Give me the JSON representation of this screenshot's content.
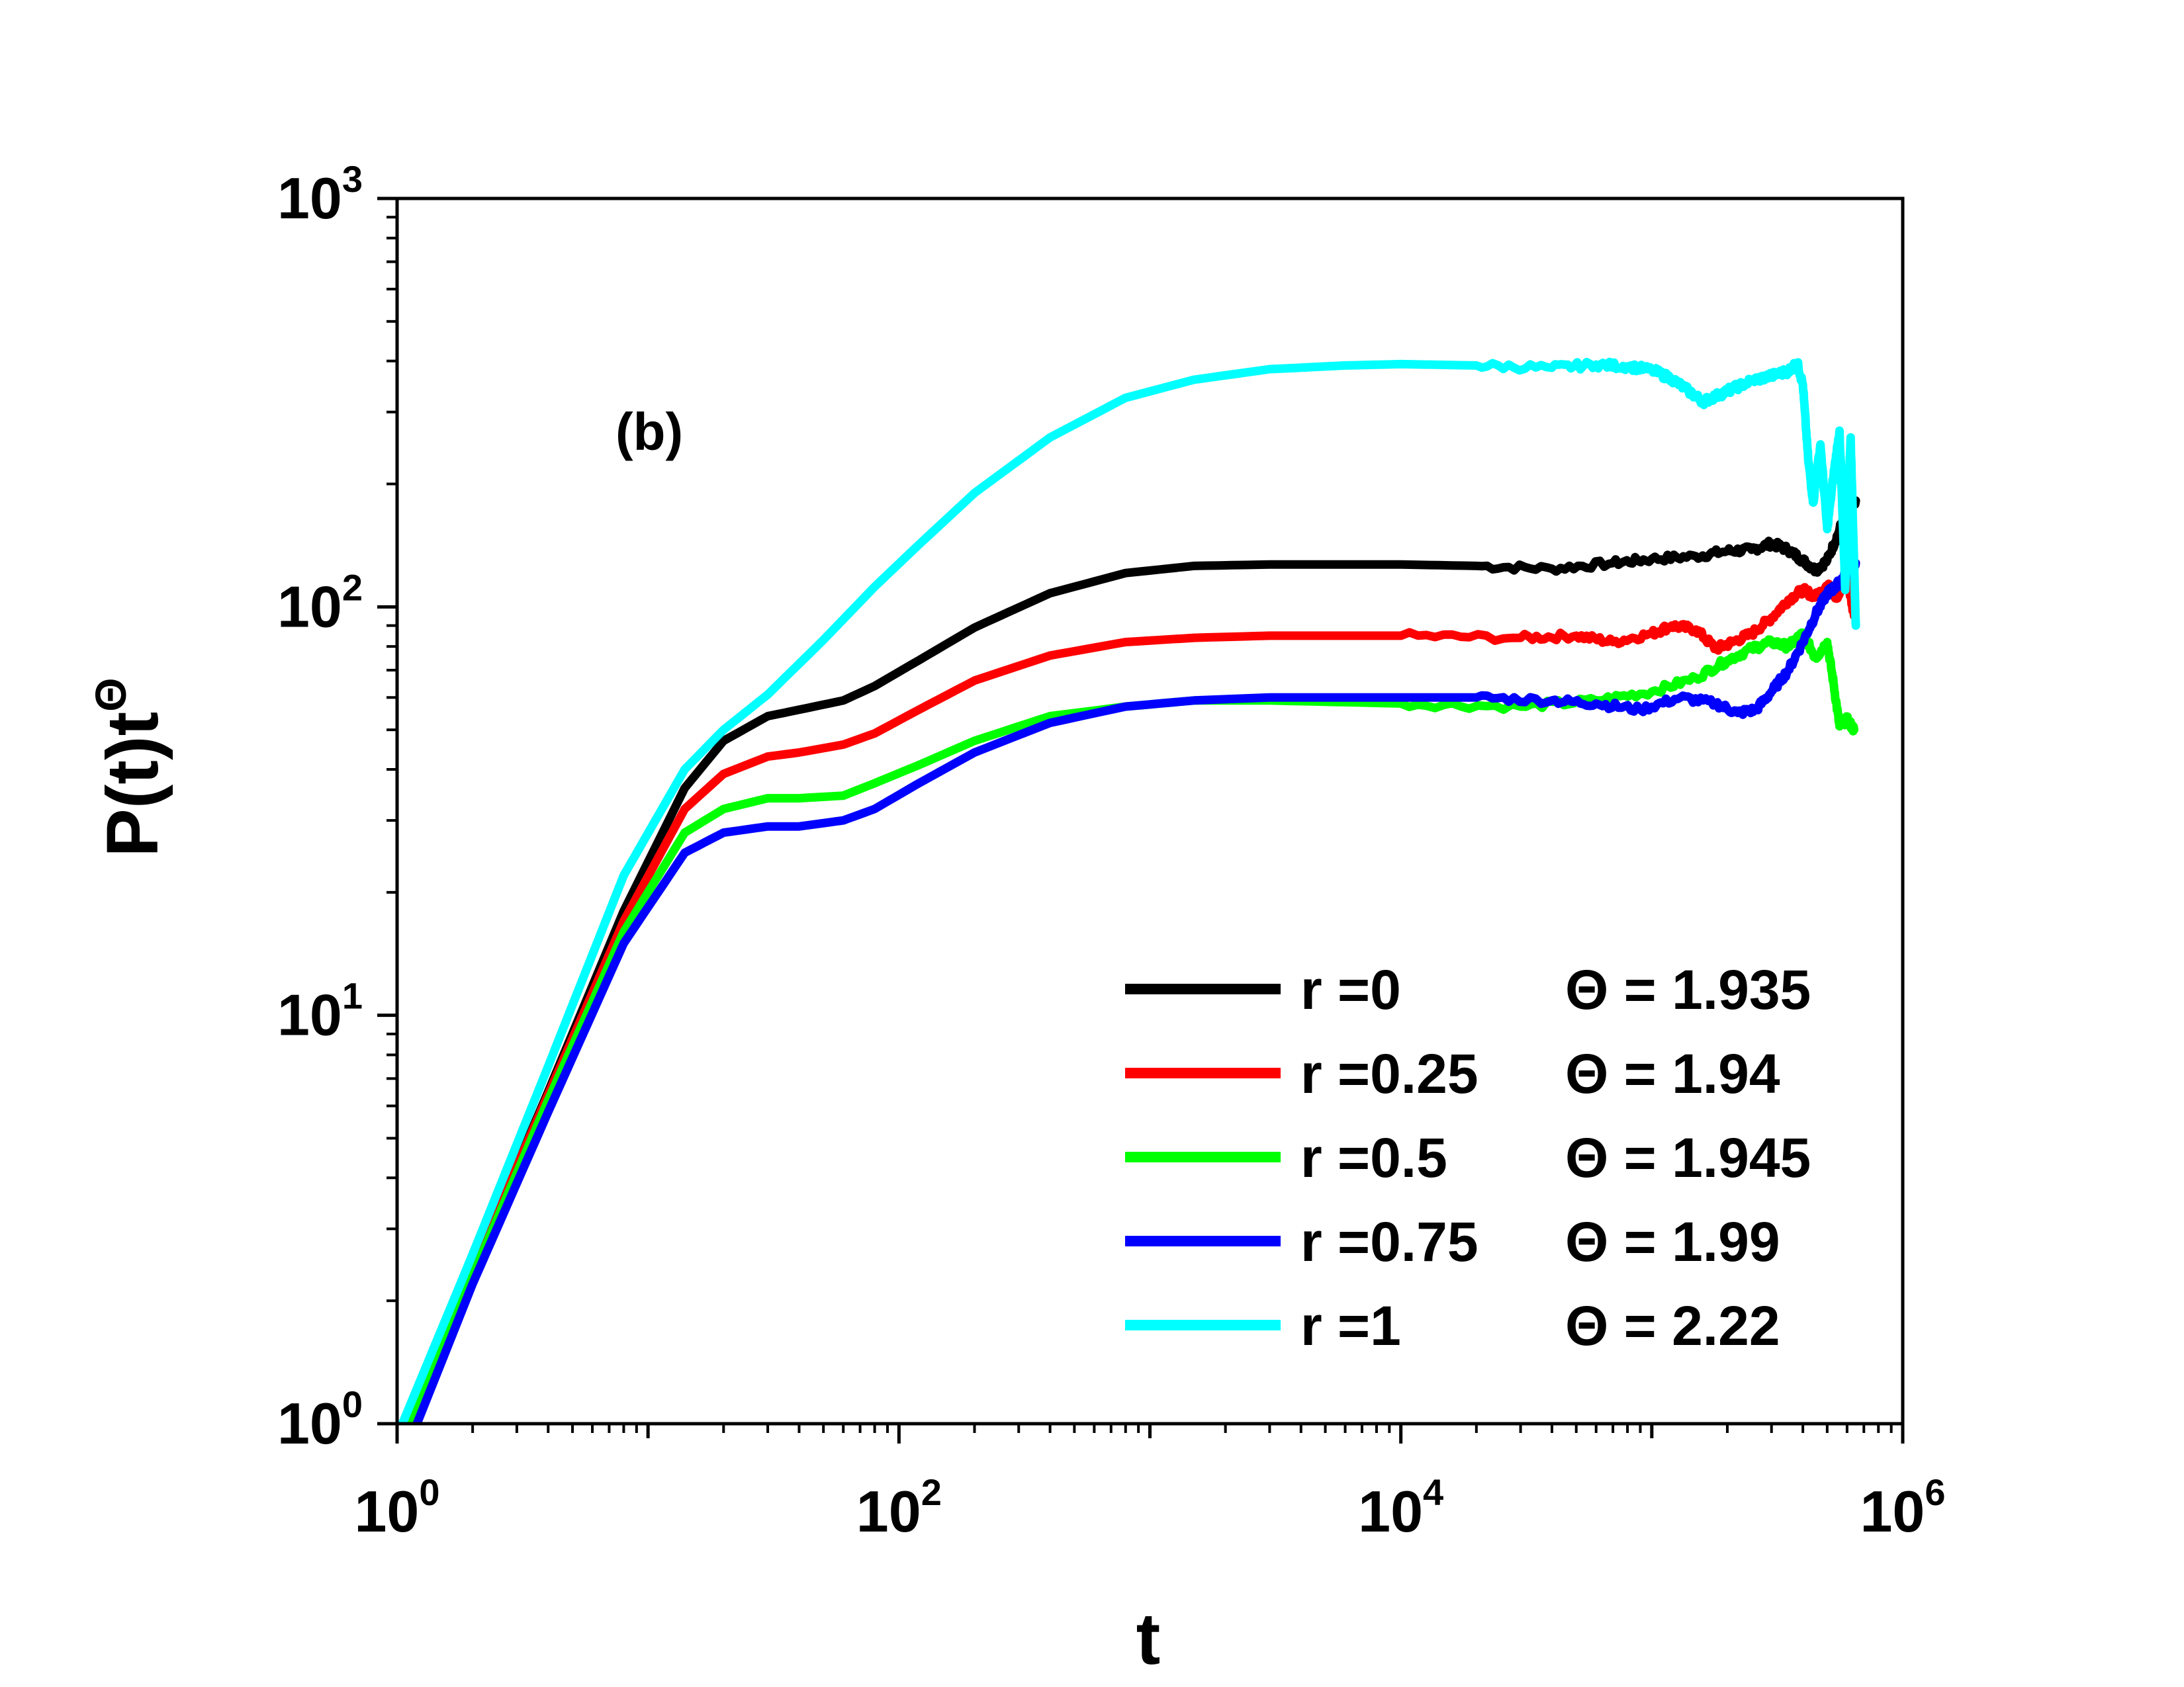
{
  "chart_data": {
    "type": "line",
    "title": "",
    "panel_label": "(b)",
    "xlabel": "t",
    "ylabel_base": "P(t)t",
    "ylabel_exponent": "Θ",
    "xscale": "log",
    "yscale": "log",
    "xlim": [
      1,
      1000000
    ],
    "ylim": [
      1,
      1000
    ],
    "x_tick_labels": [
      {
        "base": "10",
        "exp": "0",
        "value": 1
      },
      {
        "base": "10",
        "exp": "2",
        "value": 100
      },
      {
        "base": "10",
        "exp": "4",
        "value": 10000
      },
      {
        "base": "10",
        "exp": "6",
        "value": 1000000
      }
    ],
    "y_tick_labels": [
      {
        "base": "10",
        "exp": "0",
        "value": 1
      },
      {
        "base": "10",
        "exp": "1",
        "value": 10
      },
      {
        "base": "10",
        "exp": "2",
        "value": 100
      },
      {
        "base": "10",
        "exp": "3",
        "value": 1000
      }
    ],
    "legend_position": "bottom-right",
    "series": [
      {
        "name": "r =0",
        "theta_label": "Θ = 1.935",
        "color": "#000000",
        "points": [
          [
            1.1,
            1.0
          ],
          [
            2,
            2.4
          ],
          [
            4,
            6.5
          ],
          [
            8,
            18
          ],
          [
            14,
            36
          ],
          [
            20,
            47
          ],
          [
            30,
            54
          ],
          [
            40,
            56
          ],
          [
            60,
            59
          ],
          [
            80,
            64
          ],
          [
            120,
            74
          ],
          [
            200,
            89
          ],
          [
            400,
            108
          ],
          [
            800,
            121
          ],
          [
            1500,
            126
          ],
          [
            3000,
            127
          ],
          [
            10000,
            127
          ],
          [
            20000,
            126
          ],
          [
            40000,
            124
          ],
          [
            70000,
            128
          ],
          [
            100000,
            131
          ],
          [
            150000,
            133
          ],
          [
            200000,
            137
          ],
          [
            250000,
            138
          ],
          [
            300000,
            143
          ],
          [
            350000,
            138
          ],
          [
            400000,
            130
          ],
          [
            450000,
            123
          ],
          [
            500000,
            130
          ],
          [
            550000,
            150
          ],
          [
            600000,
            175
          ],
          [
            650000,
            182
          ]
        ]
      },
      {
        "name": "r =0.25",
        "theta_label": "Θ = 1.94",
        "color": "#ff0000",
        "points": [
          [
            1.1,
            1.0
          ],
          [
            2,
            2.4
          ],
          [
            4,
            6.4
          ],
          [
            8,
            17
          ],
          [
            14,
            32
          ],
          [
            20,
            39
          ],
          [
            30,
            43
          ],
          [
            40,
            44
          ],
          [
            60,
            46
          ],
          [
            80,
            49
          ],
          [
            120,
            56
          ],
          [
            200,
            66
          ],
          [
            400,
            76
          ],
          [
            800,
            82
          ],
          [
            1500,
            84
          ],
          [
            3000,
            85
          ],
          [
            10000,
            85
          ],
          [
            30000,
            84
          ],
          [
            50000,
            85
          ],
          [
            70000,
            82
          ],
          [
            100000,
            86
          ],
          [
            120000,
            90
          ],
          [
            150000,
            88
          ],
          [
            180000,
            79
          ],
          [
            210000,
            82
          ],
          [
            250000,
            86
          ],
          [
            300000,
            94
          ],
          [
            350000,
            104
          ],
          [
            400000,
            110
          ],
          [
            450000,
            106
          ],
          [
            500000,
            113
          ],
          [
            550000,
            105
          ],
          [
            600000,
            118
          ],
          [
            640000,
            95
          ]
        ]
      },
      {
        "name": "r =0.5",
        "theta_label": "Θ = 1.945",
        "color": "#00ff00",
        "points": [
          [
            1.1,
            1.0
          ],
          [
            2,
            2.3
          ],
          [
            4,
            6.2
          ],
          [
            8,
            16
          ],
          [
            14,
            28
          ],
          [
            20,
            32
          ],
          [
            30,
            34
          ],
          [
            40,
            34
          ],
          [
            60,
            34.5
          ],
          [
            80,
            37
          ],
          [
            120,
            41
          ],
          [
            200,
            47
          ],
          [
            400,
            54
          ],
          [
            800,
            57
          ],
          [
            1500,
            59
          ],
          [
            3000,
            59
          ],
          [
            10000,
            58
          ],
          [
            30000,
            57
          ],
          [
            60000,
            59
          ],
          [
            100000,
            62
          ],
          [
            150000,
            67
          ],
          [
            200000,
            74
          ],
          [
            250000,
            79
          ],
          [
            300000,
            82
          ],
          [
            350000,
            80
          ],
          [
            400000,
            86
          ],
          [
            450000,
            75
          ],
          [
            500000,
            82
          ],
          [
            530000,
            65
          ],
          [
            560000,
            51
          ],
          [
            600000,
            53
          ],
          [
            640000,
            50
          ]
        ]
      },
      {
        "name": "r =0.75",
        "theta_label": "Θ = 1.99",
        "color": "#0000ff",
        "points": [
          [
            1.2,
            1.0
          ],
          [
            2,
            2.2
          ],
          [
            4,
            5.8
          ],
          [
            8,
            15
          ],
          [
            14,
            25
          ],
          [
            20,
            28
          ],
          [
            30,
            29
          ],
          [
            40,
            29
          ],
          [
            60,
            30
          ],
          [
            80,
            32
          ],
          [
            120,
            37
          ],
          [
            200,
            44
          ],
          [
            400,
            52
          ],
          [
            800,
            57
          ],
          [
            1500,
            59
          ],
          [
            3000,
            60
          ],
          [
            10000,
            60
          ],
          [
            20000,
            60
          ],
          [
            40000,
            59
          ],
          [
            60000,
            58
          ],
          [
            90000,
            56
          ],
          [
            130000,
            60
          ],
          [
            180000,
            58
          ],
          [
            220000,
            55
          ],
          [
            260000,
            56
          ],
          [
            300000,
            62
          ],
          [
            350000,
            70
          ],
          [
            400000,
            82
          ],
          [
            450000,
            96
          ],
          [
            500000,
            108
          ],
          [
            540000,
            112
          ],
          [
            580000,
            118
          ],
          [
            620000,
            125
          ],
          [
            650000,
            128
          ]
        ]
      },
      {
        "name": "r =1",
        "theta_label": "Θ = 2.22",
        "color": "#00ffff",
        "points": [
          [
            1.05,
            1.0
          ],
          [
            2,
            2.6
          ],
          [
            4,
            7.5
          ],
          [
            8,
            22
          ],
          [
            14,
            40
          ],
          [
            20,
            50
          ],
          [
            30,
            61
          ],
          [
            50,
            83
          ],
          [
            80,
            112
          ],
          [
            120,
            142
          ],
          [
            200,
            190
          ],
          [
            400,
            260
          ],
          [
            800,
            325
          ],
          [
            1500,
            360
          ],
          [
            3000,
            382
          ],
          [
            6000,
            390
          ],
          [
            10000,
            393
          ],
          [
            20000,
            390
          ],
          [
            40000,
            385
          ],
          [
            60000,
            392
          ],
          [
            80000,
            388
          ],
          [
            100000,
            380
          ],
          [
            120000,
            362
          ],
          [
            140000,
            338
          ],
          [
            160000,
            318
          ],
          [
            180000,
            328
          ],
          [
            210000,
            342
          ],
          [
            250000,
            358
          ],
          [
            300000,
            368
          ],
          [
            350000,
            378
          ],
          [
            380000,
            396
          ],
          [
            400000,
            350
          ],
          [
            420000,
            230
          ],
          [
            440000,
            180
          ],
          [
            470000,
            250
          ],
          [
            500000,
            155
          ],
          [
            530000,
            210
          ],
          [
            560000,
            270
          ],
          [
            590000,
            110
          ],
          [
            620000,
            260
          ],
          [
            650000,
            90
          ]
        ]
      }
    ]
  }
}
